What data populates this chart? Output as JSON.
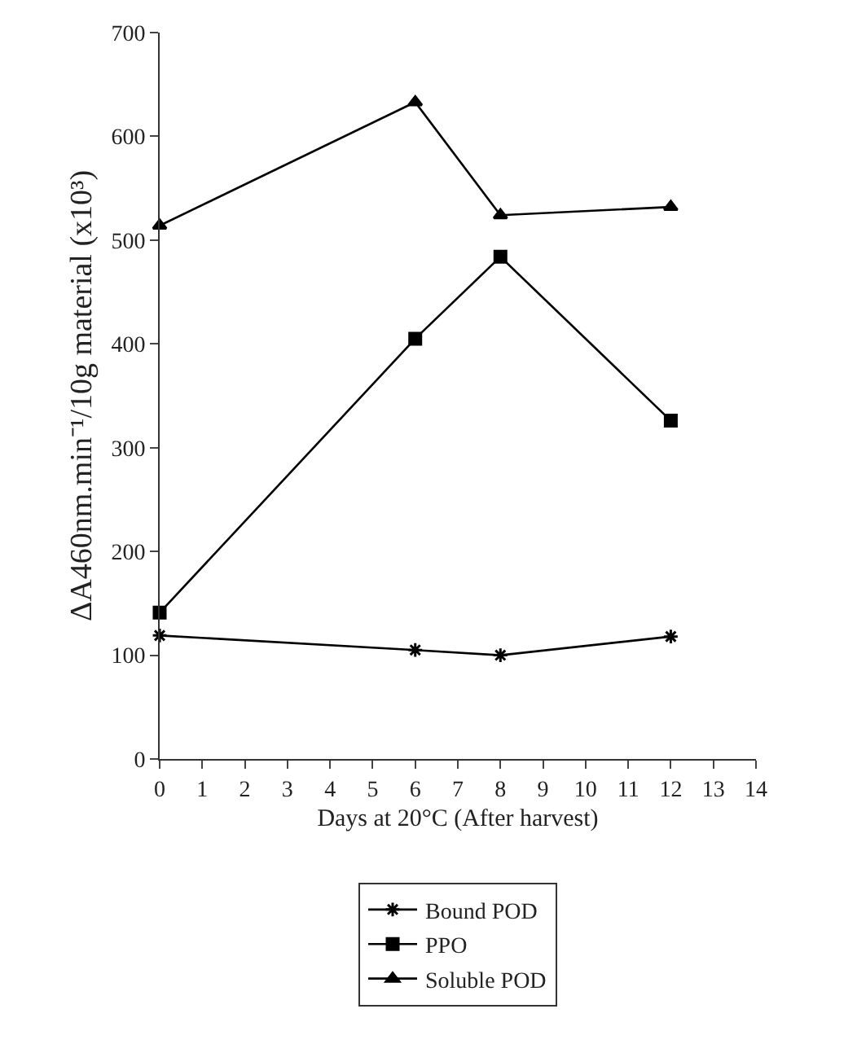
{
  "chart_data": {
    "type": "line",
    "xlabel": "Days at 20°C (After harvest)",
    "ylabel": "ΔA460nm.min⁻¹/10g material (x10³)",
    "x": [
      0,
      6,
      8,
      12
    ],
    "series": [
      {
        "name": "Bound POD",
        "color": "#000000",
        "marker": "cross",
        "values": [
          119,
          105,
          100,
          118
        ]
      },
      {
        "name": "PPO",
        "color": "#000000",
        "marker": "square",
        "values": [
          141,
          405,
          484,
          326
        ]
      },
      {
        "name": "Soluble POD",
        "color": "#000000",
        "marker": "triangle",
        "values": [
          514,
          633,
          524,
          532
        ]
      }
    ],
    "xlim": [
      0,
      14
    ],
    "xticks": [
      0,
      1,
      2,
      3,
      4,
      5,
      6,
      7,
      8,
      9,
      10,
      11,
      12,
      13,
      14
    ],
    "ylim": [
      0,
      700
    ],
    "yticks": [
      0,
      100,
      200,
      300,
      400,
      500,
      600,
      700
    ],
    "grid": false,
    "legend": "bottom",
    "line_style": "solid"
  }
}
